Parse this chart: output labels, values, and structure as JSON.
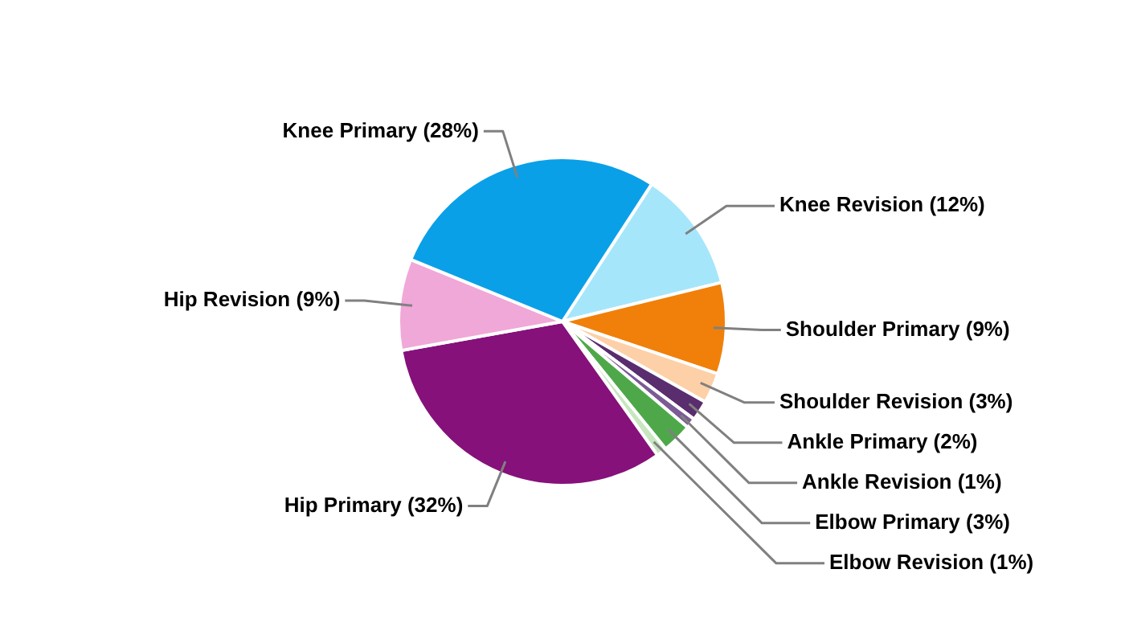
{
  "chart_data": {
    "type": "pie",
    "categories": [
      "Knee Revision (12%)",
      "Shoulder Primary (9%)",
      "Shoulder Revision (3%)",
      "Ankle Primary (2%)",
      "Ankle Revision (1%)",
      "Elbow Primary (3%)",
      "Elbow Revision (1%)",
      "Hip Primary (32%)",
      "Hip Revision (9%)",
      "Knee Primary (28%)"
    ],
    "values": [
      12,
      9,
      3,
      2,
      1,
      3,
      1,
      32,
      9,
      28
    ],
    "colors": [
      "#a6e6fb",
      "#f0800a",
      "#fdd0a8",
      "#5a2d6e",
      "#7b5a96",
      "#4ea84a",
      "#c8e6c0",
      "#86117a",
      "#f0a8d8",
      "#0aa0e8"
    ],
    "legend": false
  }
}
